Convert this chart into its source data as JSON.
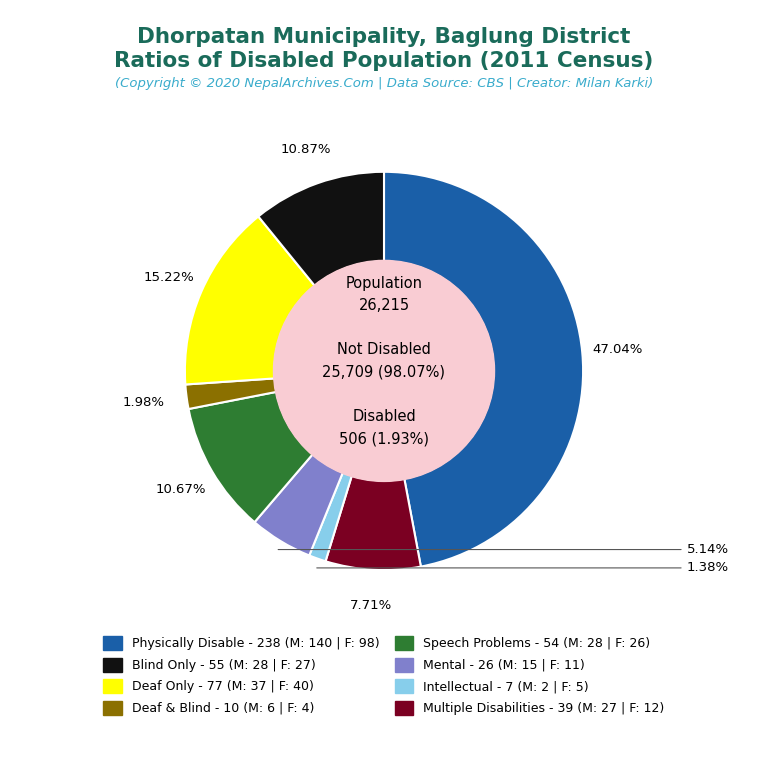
{
  "title_line1": "Dhorpatan Municipality, Baglung District",
  "title_line2": "Ratios of Disabled Population (2011 Census)",
  "subtitle": "(Copyright © 2020 NepalArchives.Com | Data Source: CBS | Creator: Milan Karki)",
  "title_color": "#1a6b5a",
  "subtitle_color": "#3aaccc",
  "center_bg": "#f9ccd3",
  "segments": [
    {
      "label": "Physically Disable",
      "value": 238,
      "male": 140,
      "female": 98,
      "pct": 47.04,
      "color": "#1a5fa8"
    },
    {
      "label": "Multiple Disabilities",
      "value": 39,
      "male": 27,
      "female": 12,
      "pct": 7.71,
      "color": "#7b0022"
    },
    {
      "label": "Intellectual",
      "value": 7,
      "male": 2,
      "female": 5,
      "pct": 1.38,
      "color": "#87ceeb"
    },
    {
      "label": "Mental",
      "value": 26,
      "male": 15,
      "female": 11,
      "pct": 5.14,
      "color": "#8080cc"
    },
    {
      "label": "Speech Problems",
      "value": 54,
      "male": 28,
      "female": 26,
      "pct": 10.67,
      "color": "#2e7d32"
    },
    {
      "label": "Deaf & Blind",
      "value": 10,
      "male": 6,
      "female": 4,
      "pct": 1.98,
      "color": "#8b7000"
    },
    {
      "label": "Deaf Only",
      "value": 77,
      "male": 37,
      "female": 40,
      "pct": 15.22,
      "color": "#ffff00"
    },
    {
      "label": "Blind Only",
      "value": 55,
      "male": 28,
      "female": 27,
      "pct": 10.87,
      "color": "#111111"
    }
  ],
  "legend_order": [
    {
      "label": "Physically Disable",
      "value": 238,
      "male": 140,
      "female": 98,
      "color": "#1a5fa8"
    },
    {
      "label": "Blind Only",
      "value": 55,
      "male": 28,
      "female": 27,
      "color": "#111111"
    },
    {
      "label": "Deaf Only",
      "value": 77,
      "male": 37,
      "female": 40,
      "color": "#ffff00"
    },
    {
      "label": "Deaf & Blind",
      "value": 10,
      "male": 6,
      "female": 4,
      "color": "#8b7000"
    },
    {
      "label": "Speech Problems",
      "value": 54,
      "male": 28,
      "female": 26,
      "color": "#2e7d32"
    },
    {
      "label": "Mental",
      "value": 26,
      "male": 15,
      "female": 11,
      "color": "#8080cc"
    },
    {
      "label": "Intellectual",
      "value": 7,
      "male": 2,
      "female": 5,
      "color": "#87ceeb"
    },
    {
      "label": "Multiple Disabilities",
      "value": 39,
      "male": 27,
      "female": 12,
      "color": "#7b0022"
    }
  ],
  "bg_color": "#ffffff"
}
